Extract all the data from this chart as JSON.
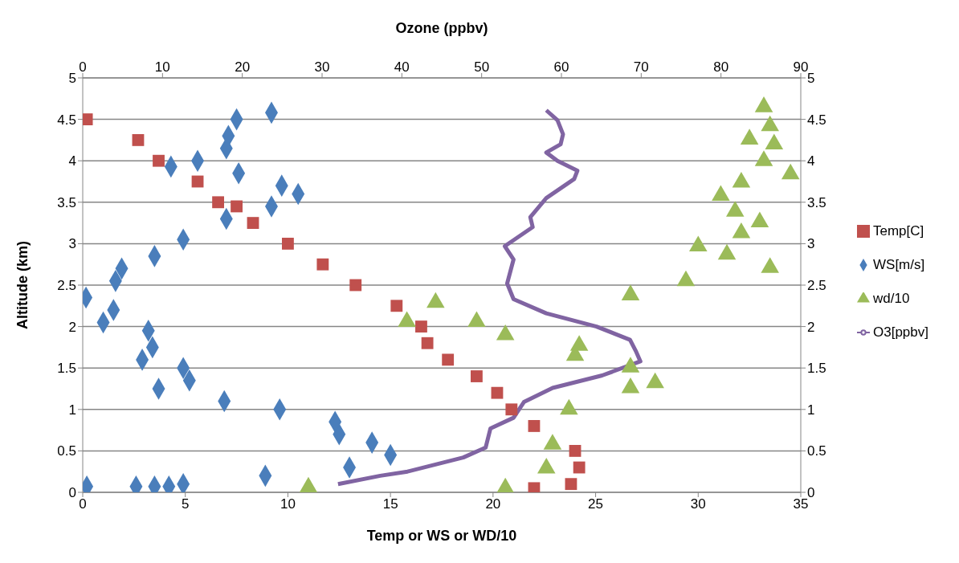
{
  "chart_data": {
    "type": "scatter",
    "xlabel": "Temp or WS or WD/10",
    "x2label": "Ozone (ppbv)",
    "ylabel": "Altitude (km)",
    "xlim": [
      0,
      35
    ],
    "xticks": [
      0,
      5,
      10,
      15,
      20,
      25,
      30,
      35
    ],
    "x2lim": [
      0,
      90
    ],
    "x2ticks": [
      0,
      10,
      20,
      30,
      40,
      50,
      60,
      70,
      80,
      90
    ],
    "ylim": [
      0,
      5
    ],
    "yticks": [
      0,
      0.5,
      1,
      1.5,
      2,
      2.5,
      3,
      3.5,
      4,
      4.5,
      5
    ],
    "y2lim": [
      0,
      5
    ],
    "y2ticks": [
      0,
      0.5,
      1,
      1.5,
      2,
      2.5,
      3,
      3.5,
      4,
      4.5,
      5
    ],
    "grid": "y",
    "legend": "right",
    "series": [
      {
        "name": "Temp[C]",
        "marker": "square",
        "color": "#c0504d",
        "x": [
          22,
          23.8,
          24.2,
          24,
          22,
          20.9,
          20.2,
          19.2,
          17.8,
          16.8,
          16.5,
          15.3,
          13.3,
          11.7,
          10,
          8.3,
          7.5,
          6.6,
          5.6,
          3.7,
          2.7,
          0.2
        ],
        "values": [
          0.05,
          0.1,
          0.3,
          0.5,
          0.8,
          1,
          1.2,
          1.4,
          1.6,
          1.8,
          2,
          2.25,
          2.5,
          2.75,
          3,
          3.25,
          3.45,
          3.5,
          3.75,
          4,
          4.25,
          4.5
        ]
      },
      {
        "name": "WS[m/s]",
        "marker": "diamond",
        "color": "#4a7ebb",
        "x": [
          0.2,
          2.6,
          3.5,
          4.2,
          4.9,
          8.9,
          13,
          15,
          14.1,
          12.5,
          12.3,
          9.6,
          6.9,
          3.7,
          5.2,
          4.9,
          2.9,
          3.4,
          3.2,
          1,
          1.5,
          0.16,
          1.6,
          1.9,
          3.5,
          4.9,
          7,
          9.2,
          10.5,
          9.7,
          7.6,
          4.3,
          5.6,
          7,
          7.1,
          7.5,
          9.2
        ],
        "values": [
          0.07,
          0.07,
          0.07,
          0.07,
          0.1,
          0.2,
          0.3,
          0.45,
          0.6,
          0.7,
          0.85,
          1,
          1.1,
          1.25,
          1.35,
          1.5,
          1.6,
          1.75,
          1.95,
          2.05,
          2.2,
          2.35,
          2.55,
          2.7,
          2.85,
          3.05,
          3.3,
          3.45,
          3.6,
          3.7,
          3.85,
          3.93,
          4,
          4.15,
          4.3,
          4.5,
          4.58
        ]
      },
      {
        "name": "wd/10",
        "marker": "triangle",
        "color": "#9bbb59",
        "x": [
          11,
          20.6,
          22.6,
          22.9,
          23.7,
          26.7,
          27.9,
          26.7,
          24,
          24.2,
          20.6,
          19.2,
          15.8,
          17.2,
          26.7,
          29.4,
          33.5,
          31.4,
          30,
          32.1,
          33,
          31.8,
          31.1,
          32.1,
          34.5,
          33.2,
          33.7,
          32.5,
          33.5,
          33.2
        ],
        "values": [
          0.06,
          0.05,
          0.29,
          0.58,
          1,
          1.26,
          1.32,
          1.51,
          1.65,
          1.77,
          1.9,
          2.06,
          2.06,
          2.29,
          2.38,
          2.55,
          2.71,
          2.87,
          2.97,
          3.13,
          3.26,
          3.39,
          3.58,
          3.74,
          3.84,
          4,
          4.2,
          4.26,
          4.42,
          4.65
        ]
      },
      {
        "name": "O3[ppbv]",
        "type": "line",
        "axis": "x2",
        "color": "#8064a2",
        "x": [
          32,
          37.3,
          40.7,
          47.7,
          50.5,
          51.1,
          54,
          55.3,
          58.9,
          65.1,
          69.9,
          69.3,
          68.6,
          64.4,
          58.1,
          54,
          53.2,
          54,
          52.9,
          56.4,
          56.1,
          58.1,
          61.6,
          62,
          59.5,
          58.1,
          59.9,
          60.2,
          59.5,
          58.1
        ],
        "values": [
          0.1,
          0.2,
          0.25,
          0.42,
          0.54,
          0.77,
          0.9,
          1.09,
          1.26,
          1.41,
          1.58,
          1.71,
          1.84,
          2,
          2.16,
          2.33,
          2.52,
          2.81,
          2.97,
          3.2,
          3.32,
          3.55,
          3.78,
          3.88,
          4,
          4.1,
          4.2,
          4.32,
          4.49,
          4.61
        ]
      }
    ]
  }
}
